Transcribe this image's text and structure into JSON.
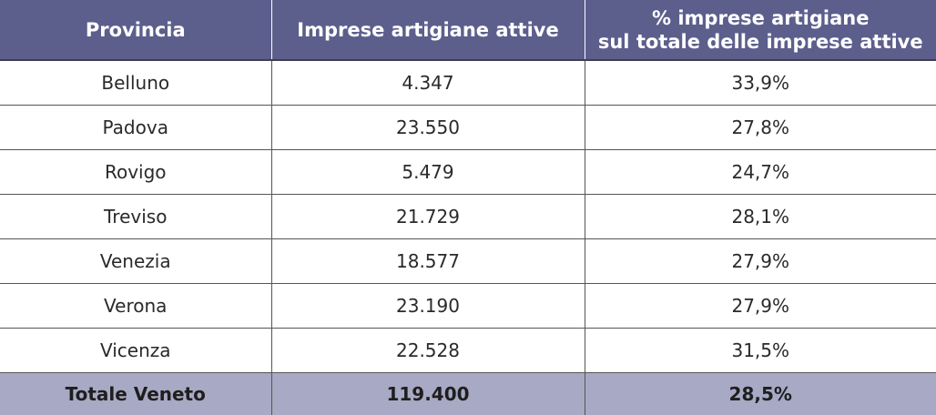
{
  "chart_data": {
    "type": "table",
    "columns": [
      "Provincia",
      "Imprese artigiane attive",
      "% imprese artigiane sul totale delle imprese attive"
    ],
    "column_lines": [
      [
        "Provincia"
      ],
      [
        "Imprese artigiane attive"
      ],
      [
        "% imprese artigiane",
        "sul totale delle imprese attive"
      ]
    ],
    "rows": [
      [
        "Belluno",
        "4.347",
        "33,9%"
      ],
      [
        "Padova",
        "23.550",
        "27,8%"
      ],
      [
        "Rovigo",
        "5.479",
        "24,7%"
      ],
      [
        "Treviso",
        "21.729",
        "28,1%"
      ],
      [
        "Venezia",
        "18.577",
        "27,9%"
      ],
      [
        "Verona",
        "23.190",
        "27,9%"
      ],
      [
        "Vicenza",
        "22.528",
        "31,5%"
      ]
    ],
    "total": [
      "Totale Veneto",
      "119.400",
      "28,5%"
    ],
    "colors": {
      "header_bg": "#5c5f8c",
      "header_text": "#ffffff",
      "total_bg": "#a8a9c4"
    }
  }
}
